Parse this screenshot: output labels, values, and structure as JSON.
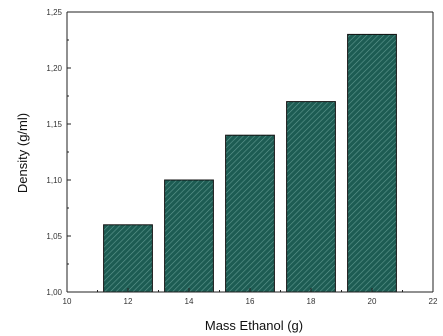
{
  "chart_data": {
    "type": "bar",
    "title": "",
    "xlabel": "Mass Ethanol (g)",
    "ylabel": "Density (g/ml)",
    "categories": [
      12,
      14,
      16,
      18,
      20
    ],
    "values": [
      1.06,
      1.1,
      1.14,
      1.17,
      1.23
    ],
    "xlim": [
      10,
      22
    ],
    "ylim": [
      1.0,
      1.25
    ],
    "xticks": [
      "10",
      "12",
      "14",
      "16",
      "18",
      "20",
      "22"
    ],
    "yticks": [
      "1,00",
      "1,05",
      "1,10",
      "1,15",
      "1,20",
      "1,25"
    ],
    "grid": false,
    "legend": "none",
    "bar_color": "#1d5c53",
    "hatch_color": "#5f9990"
  }
}
